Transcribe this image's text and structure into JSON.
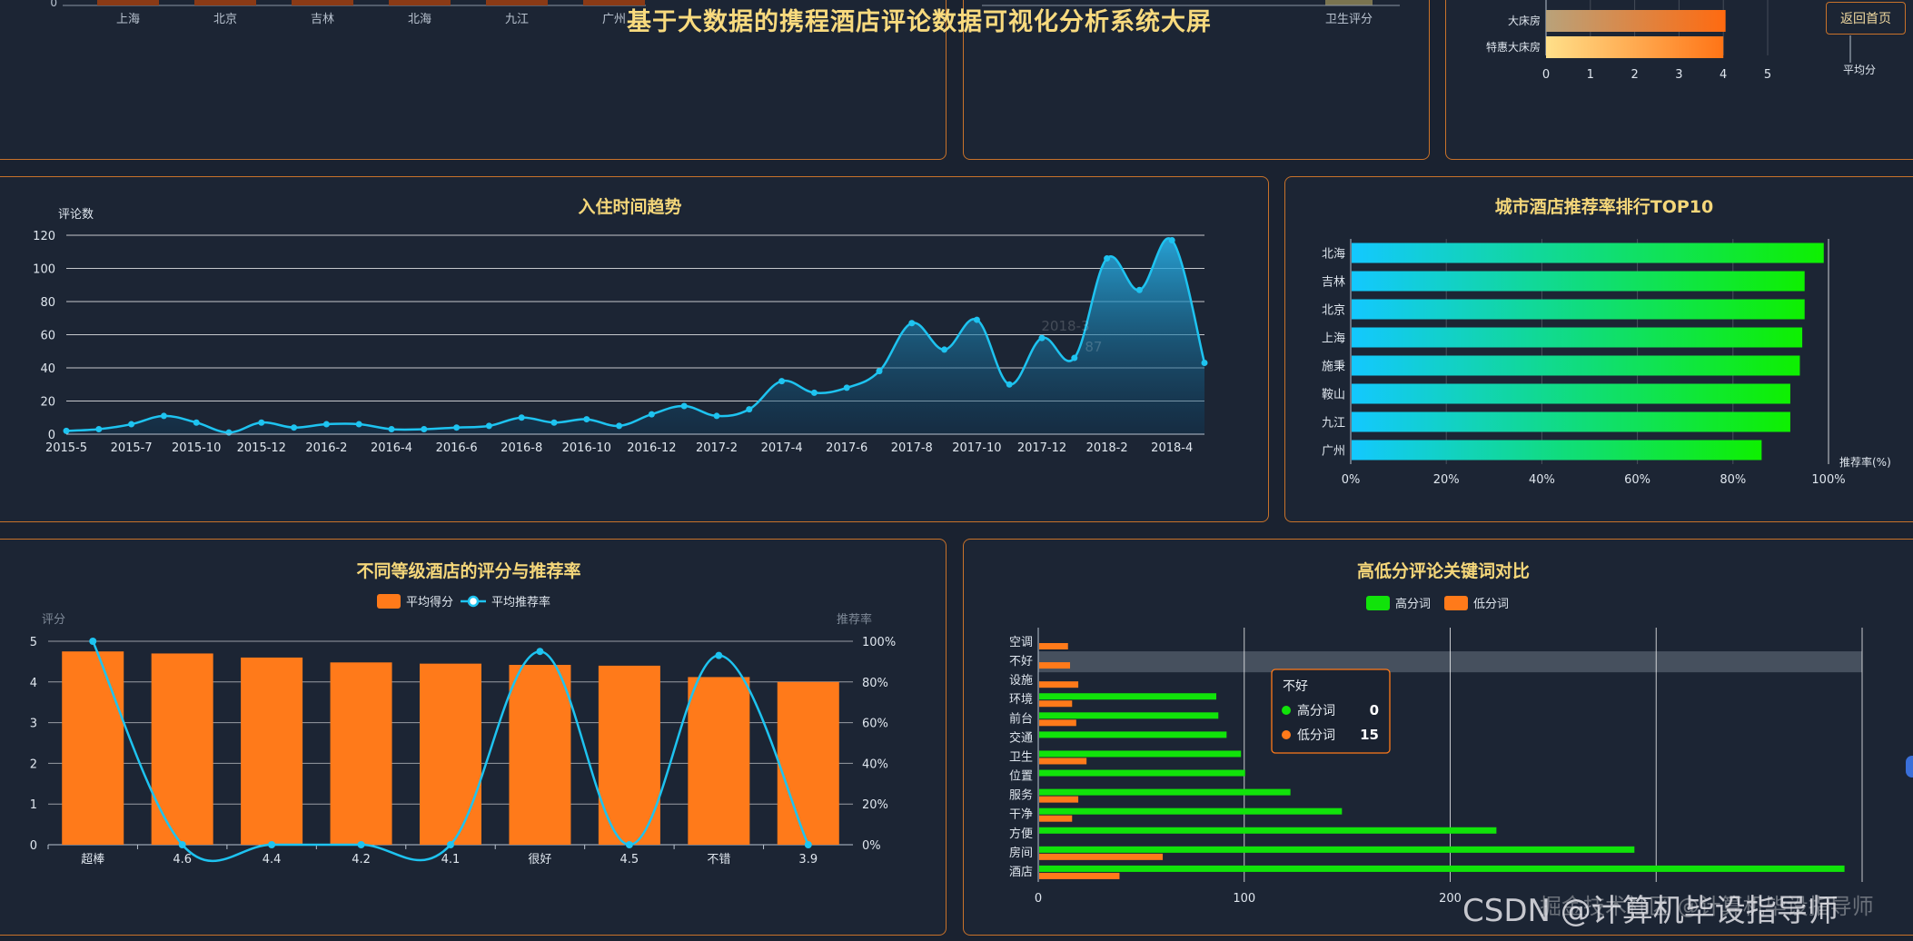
{
  "header": {
    "title": "基于大数据的携程酒店评论数据可视化分析系统大屏",
    "home_button": "返回首页"
  },
  "top_left": {
    "categories": [
      "上海",
      "北京",
      "吉林",
      "北海",
      "九江",
      "广州"
    ],
    "zero_label": "0"
  },
  "top_mid": {
    "visible_label": "卫生评分"
  },
  "top_right": {
    "chart_data": {
      "type": "bar",
      "orientation": "horizontal",
      "categories": [
        "大床房",
        "特惠大床房"
      ],
      "values": [
        4.05,
        4.0
      ],
      "xlim": [
        0,
        5
      ],
      "xticks": [
        "0",
        "1",
        "2",
        "3",
        "4",
        "5"
      ],
      "xlabel": "平均分"
    }
  },
  "trend": {
    "title": "入住时间趋势",
    "chart_data": {
      "type": "area",
      "ylabel": "评论数",
      "ylim": [
        0,
        120
      ],
      "yticks": [
        "0",
        "20",
        "40",
        "60",
        "80",
        "100",
        "120"
      ],
      "xtick_labels": [
        "2015-5",
        "2015-7",
        "2015-10",
        "2015-12",
        "2016-2",
        "2016-4",
        "2016-6",
        "2016-8",
        "2016-10",
        "2016-12",
        "2017-2",
        "2017-4",
        "2017-6",
        "2017-8",
        "2017-10",
        "2017-12",
        "2018-2",
        "2018-4"
      ],
      "x": [
        "2015-5",
        "2015-6",
        "2015-7",
        "2015-8",
        "2015-10",
        "2015-11",
        "2015-12",
        "2016-1",
        "2016-2",
        "2016-3",
        "2016-4",
        "2016-5",
        "2016-6",
        "2016-7",
        "2016-8",
        "2016-9",
        "2016-10",
        "2016-11",
        "2016-12",
        "2017-1",
        "2017-2",
        "2017-3",
        "2017-4",
        "2017-5",
        "2017-6",
        "2017-7",
        "2017-8",
        "2017-9",
        "2017-10",
        "2017-11",
        "2017-12",
        "2018-1",
        "2018-2",
        "2018-3",
        "2018-4",
        "2018-5"
      ],
      "values": [
        2,
        3,
        6,
        11,
        7,
        1,
        7,
        4,
        6,
        6,
        3,
        3,
        4,
        5,
        10,
        7,
        9,
        5,
        12,
        17,
        11,
        15,
        32,
        25,
        28,
        38,
        67,
        51,
        69,
        30,
        58,
        46,
        106,
        87,
        117,
        43
      ],
      "tooltip_date": "2018-3",
      "tooltip_value_text": "87"
    }
  },
  "city_rank": {
    "title": "城市酒店推荐率排行TOP10",
    "chart_data": {
      "type": "bar",
      "orientation": "horizontal",
      "categories": [
        "北海",
        "吉林",
        "北京",
        "上海",
        "施秉",
        "鞍山",
        "九江",
        "广州"
      ],
      "values": [
        99,
        95,
        95,
        94.5,
        94,
        92,
        92,
        86
      ],
      "xlim": [
        0,
        100
      ],
      "xticks": [
        "0%",
        "20%",
        "40%",
        "60%",
        "80%",
        "100%"
      ],
      "xlabel": "推荐率(%)"
    }
  },
  "grade": {
    "title": "不同等级酒店的评分与推荐率",
    "legend": [
      "平均得分",
      "平均推荐率"
    ],
    "chart_data": {
      "type": "bar",
      "categories": [
        "超棒",
        "4.6",
        "4.4",
        "4.2",
        "4.1",
        "很好",
        "4.5",
        "不错",
        "3.9"
      ],
      "series": [
        {
          "name": "平均得分",
          "type": "bar",
          "axis": "left",
          "values": [
            4.75,
            4.7,
            4.6,
            4.48,
            4.45,
            4.42,
            4.4,
            4.12,
            4.0
          ]
        },
        {
          "name": "平均推荐率",
          "type": "line",
          "axis": "right",
          "values": [
            100,
            0,
            0,
            0,
            0,
            95,
            0,
            93,
            0
          ]
        }
      ],
      "ylabel_left": "评分",
      "ylabel_right": "推荐率",
      "ylim_left": [
        0,
        5
      ],
      "ylim_right": [
        0,
        100
      ],
      "yticks_left": [
        "0",
        "1",
        "2",
        "3",
        "4",
        "5"
      ],
      "yticks_right": [
        "0%",
        "20%",
        "40%",
        "60%",
        "80%",
        "100%"
      ]
    }
  },
  "keywords": {
    "title": "高低分评论关键词对比",
    "legend": [
      "高分词",
      "低分词"
    ],
    "chart_data": {
      "type": "bar",
      "orientation": "horizontal",
      "categories": [
        "空调",
        "不好",
        "设施",
        "环境",
        "前台",
        "交通",
        "卫生",
        "位置",
        "服务",
        "干净",
        "方便",
        "房间",
        "酒店"
      ],
      "series": [
        {
          "name": "高分词",
          "values": [
            0,
            0,
            0,
            86,
            87,
            91,
            98,
            100,
            122,
            147,
            222,
            289,
            391
          ]
        },
        {
          "name": "低分词",
          "values": [
            14,
            15,
            19,
            16,
            18,
            0,
            23,
            0,
            19,
            16,
            0,
            60,
            39
          ]
        }
      ],
      "xlim": [
        0,
        400
      ],
      "xticks": [
        "0",
        "100",
        "200"
      ],
      "tooltip": {
        "title": "不好",
        "items": [
          {
            "name": "高分词",
            "value": "0"
          },
          {
            "name": "低分词",
            "value": "15"
          }
        ]
      }
    }
  },
  "watermark": "CSDN @计算机毕设指导师",
  "watermark2": "掘金技术社区 @计算机毕设指导师",
  "colors": {
    "orange": "#ff7a1a",
    "green": "#11e30a",
    "cyan": "#1ec3f0",
    "gold": "#f5d77a"
  }
}
